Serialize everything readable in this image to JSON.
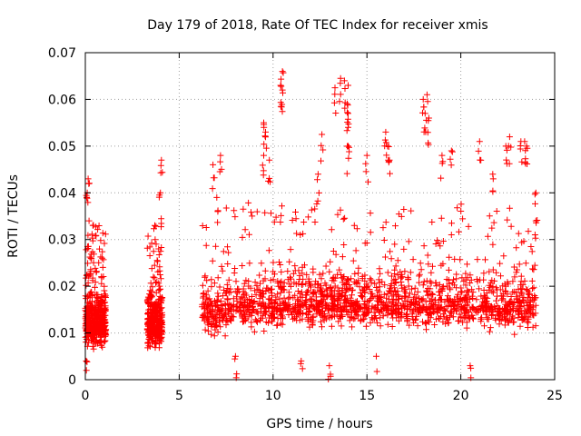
{
  "chart_data": {
    "type": "scatter",
    "title": "Day 179 of 2018, Rate Of TEC Index for receiver xmis",
    "xlabel": "GPS time / hours",
    "ylabel": "ROTI / TECUs",
    "xlim": [
      0,
      25
    ],
    "ylim": [
      0,
      0.07
    ],
    "x_ticks": [
      0,
      5,
      10,
      15,
      20,
      25
    ],
    "y_ticks": [
      0,
      0.01,
      0.02,
      0.03,
      0.04,
      0.05,
      0.06,
      0.07
    ],
    "x_tick_labels": [
      "0",
      "5",
      "10",
      "15",
      "20",
      "25"
    ],
    "y_tick_labels": [
      "0",
      "0.01",
      "0.02",
      "0.03",
      "0.04",
      "0.05",
      "0.06",
      "0.07"
    ],
    "grid": true,
    "marker": "+",
    "marker_color": "#ff0000",
    "series": [
      {
        "name": "ROTI",
        "coverage_windows_hours": [
          [
            0,
            1.1
          ],
          [
            3.3,
            4.1
          ],
          [
            6.2,
            24
          ]
        ],
        "typical_range": [
          0.005,
          0.03
        ],
        "points": [
          [
            0.1,
            0.04
          ],
          [
            0.15,
            0.043
          ],
          [
            0.2,
            0.034
          ],
          [
            0.3,
            0.026
          ],
          [
            0.4,
            0.033
          ],
          [
            0.9,
            0.026
          ],
          [
            3.7,
            0.033
          ],
          [
            3.9,
            0.028
          ],
          [
            4.05,
            0.047
          ],
          [
            4.0,
            0.04
          ],
          [
            6.8,
            0.046
          ],
          [
            7.2,
            0.048
          ],
          [
            7.0,
            0.039
          ],
          [
            9.5,
            0.055
          ],
          [
            9.6,
            0.053
          ],
          [
            9.5,
            0.048
          ],
          [
            9.8,
            0.047
          ],
          [
            10.5,
            0.066
          ],
          [
            10.4,
            0.063
          ],
          [
            10.5,
            0.062
          ],
          [
            12.6,
            0.0525
          ],
          [
            12.4,
            0.044
          ],
          [
            13.3,
            0.0625
          ],
          [
            13.6,
            0.0645
          ],
          [
            13.8,
            0.064
          ],
          [
            14.0,
            0.063
          ],
          [
            14.0,
            0.057
          ],
          [
            14.0,
            0.054
          ],
          [
            14.0,
            0.05
          ],
          [
            15.0,
            0.048
          ],
          [
            16.0,
            0.053
          ],
          [
            16.1,
            0.05
          ],
          [
            16.2,
            0.047
          ],
          [
            18.0,
            0.06
          ],
          [
            18.2,
            0.061
          ],
          [
            18.1,
            0.057
          ],
          [
            18.3,
            0.056
          ],
          [
            19.0,
            0.048
          ],
          [
            19.5,
            0.049
          ],
          [
            21.0,
            0.051
          ],
          [
            21.7,
            0.044
          ],
          [
            22.4,
            0.05
          ],
          [
            22.6,
            0.052
          ],
          [
            23.2,
            0.051
          ],
          [
            23.4,
            0.051
          ],
          [
            23.5,
            0.05
          ],
          [
            24.0,
            0.04
          ],
          [
            24.0,
            0.034
          ],
          [
            0.05,
            0.004
          ],
          [
            20.5,
            0.003
          ],
          [
            11.5,
            0.004
          ],
          [
            13.0,
            0.003
          ],
          [
            15.5,
            0.005
          ],
          [
            8.0,
            0.005
          ]
        ]
      }
    ]
  }
}
